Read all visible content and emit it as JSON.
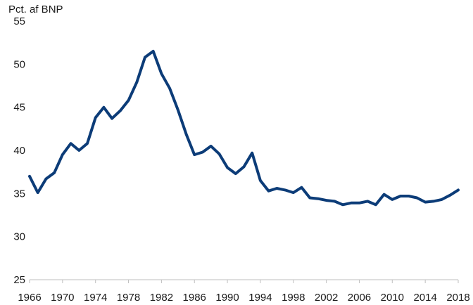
{
  "chart_data": {
    "type": "line",
    "title": "",
    "ylabel": "Pct. af BNP",
    "xlabel": "",
    "grid": false,
    "legend": "none",
    "colors": {
      "line": "#0c3c78",
      "axis": "#bfbfbf",
      "text": "#1a1a1a"
    },
    "xlim": [
      1966,
      2018
    ],
    "ylim": [
      25,
      55
    ],
    "x_ticks": [
      1966,
      1970,
      1974,
      1978,
      1982,
      1986,
      1990,
      1994,
      1998,
      2002,
      2006,
      2010,
      2014,
      2018
    ],
    "x_tick_labels": [
      "1966",
      "1970",
      "1974",
      "1978",
      "1982",
      "1986",
      "1990",
      "1994",
      "1998",
      "2002",
      "2006",
      "2010",
      "2014",
      "2018"
    ],
    "y_ticks": [
      25,
      30,
      35,
      40,
      45,
      50,
      55
    ],
    "y_tick_labels": [
      "25",
      "30",
      "35",
      "40",
      "45",
      "50",
      "55"
    ],
    "x": [
      1966,
      1967,
      1968,
      1969,
      1970,
      1971,
      1972,
      1973,
      1974,
      1975,
      1976,
      1977,
      1978,
      1979,
      1980,
      1981,
      1982,
      1983,
      1984,
      1985,
      1986,
      1987,
      1988,
      1989,
      1990,
      1991,
      1992,
      1993,
      1994,
      1995,
      1996,
      1997,
      1998,
      1999,
      2000,
      2001,
      2002,
      2003,
      2004,
      2005,
      2006,
      2007,
      2008,
      2009,
      2010,
      2011,
      2012,
      2013,
      2014,
      2015,
      2016,
      2017,
      2018
    ],
    "values": [
      37.0,
      35.1,
      36.7,
      37.4,
      39.5,
      40.8,
      40.0,
      40.8,
      43.8,
      45.0,
      43.7,
      44.6,
      45.8,
      47.9,
      50.8,
      51.5,
      48.9,
      47.2,
      44.7,
      41.9,
      39.5,
      39.8,
      40.5,
      39.6,
      38.0,
      37.3,
      38.1,
      39.7,
      36.5,
      35.3,
      35.6,
      35.4,
      35.1,
      35.7,
      34.5,
      34.4,
      34.2,
      34.1,
      33.7,
      33.9,
      33.9,
      34.1,
      33.7,
      34.9,
      34.3,
      34.7,
      34.7,
      34.5,
      34.0,
      34.1,
      34.3,
      34.8,
      35.4
    ]
  }
}
